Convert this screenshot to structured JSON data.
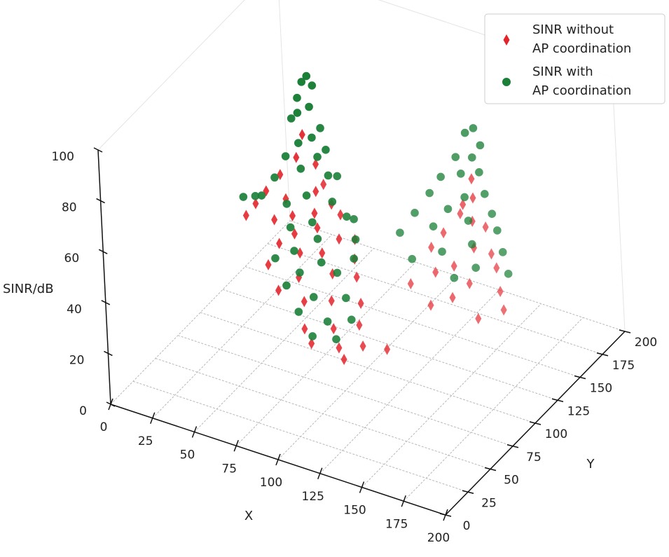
{
  "chart_data": {
    "type": "scatter",
    "projection": "3d",
    "xlabel": "X",
    "ylabel": "Y",
    "zlabel": "SINR/dB",
    "xlim": [
      0,
      200
    ],
    "ylim": [
      0,
      200
    ],
    "zlim": [
      0,
      100
    ],
    "x_ticks": [
      0,
      25,
      50,
      75,
      100,
      125,
      150,
      175,
      200
    ],
    "y_ticks": [
      0,
      25,
      50,
      75,
      100,
      125,
      150,
      175,
      200
    ],
    "z_ticks": [
      0,
      20,
      40,
      60,
      80,
      100
    ],
    "grid": true,
    "legend_position": "top-right",
    "colors": {
      "without": "#e3242b",
      "with": "#1a7f37"
    },
    "series": [
      {
        "name": "SINR without\nAP coordination",
        "marker": "diamond",
        "points": [
          [
            50,
            130,
            70
          ],
          [
            48,
            126,
            62
          ],
          [
            55,
            134,
            58
          ],
          [
            40,
            122,
            55
          ],
          [
            60,
            124,
            52
          ],
          [
            45,
            118,
            48
          ],
          [
            35,
            115,
            50
          ],
          [
            58,
            136,
            50
          ],
          [
            62,
            118,
            46
          ],
          [
            30,
            112,
            45
          ],
          [
            52,
            112,
            45
          ],
          [
            68,
            126,
            48
          ],
          [
            72,
            128,
            44
          ],
          [
            42,
            110,
            42
          ],
          [
            25,
            110,
            40
          ],
          [
            55,
            108,
            40
          ],
          [
            65,
            115,
            42
          ],
          [
            75,
            120,
            38
          ],
          [
            50,
            100,
            38
          ],
          [
            80,
            128,
            36
          ],
          [
            60,
            104,
            35
          ],
          [
            70,
            110,
            35
          ],
          [
            85,
            118,
            33
          ],
          [
            45,
            96,
            30
          ],
          [
            62,
            98,
            28
          ],
          [
            78,
            106,
            30
          ],
          [
            88,
            114,
            28
          ],
          [
            55,
            88,
            25
          ],
          [
            68,
            92,
            22
          ],
          [
            80,
            100,
            22
          ],
          [
            92,
            110,
            20
          ],
          [
            72,
            84,
            15
          ],
          [
            85,
            92,
            15
          ],
          [
            95,
            102,
            15
          ],
          [
            78,
            80,
            12
          ],
          [
            90,
            88,
            10
          ],
          [
            100,
            96,
            10
          ],
          [
            110,
            104,
            8
          ],
          [
            95,
            84,
            8
          ],
          [
            120,
            185,
            48
          ],
          [
            122,
            182,
            42
          ],
          [
            118,
            178,
            40
          ],
          [
            125,
            175,
            36
          ],
          [
            115,
            180,
            35
          ],
          [
            130,
            180,
            33
          ],
          [
            110,
            170,
            30
          ],
          [
            128,
            170,
            28
          ],
          [
            135,
            176,
            25
          ],
          [
            105,
            165,
            25
          ],
          [
            140,
            172,
            22
          ],
          [
            120,
            162,
            22
          ],
          [
            112,
            156,
            20
          ],
          [
            130,
            160,
            18
          ],
          [
            145,
            166,
            16
          ],
          [
            100,
            150,
            15
          ],
          [
            125,
            150,
            15
          ],
          [
            150,
            160,
            12
          ],
          [
            115,
            144,
            12
          ],
          [
            140,
            150,
            10
          ]
        ]
      },
      {
        "name": "SINR with\nAP coordination",
        "marker": "circle",
        "points": [
          [
            52,
            134,
            92
          ],
          [
            50,
            132,
            90
          ],
          [
            54,
            136,
            88
          ],
          [
            48,
            130,
            84
          ],
          [
            55,
            130,
            82
          ],
          [
            50,
            126,
            80
          ],
          [
            45,
            128,
            76
          ],
          [
            60,
            132,
            74
          ],
          [
            58,
            126,
            72
          ],
          [
            52,
            122,
            70
          ],
          [
            65,
            128,
            68
          ],
          [
            62,
            124,
            66
          ],
          [
            45,
            120,
            64
          ],
          [
            55,
            118,
            62
          ],
          [
            68,
            124,
            60
          ],
          [
            70,
            130,
            58
          ],
          [
            40,
            116,
            56
          ],
          [
            60,
            114,
            54
          ],
          [
            72,
            120,
            52
          ],
          [
            50,
            110,
            50
          ],
          [
            35,
            110,
            50
          ],
          [
            30,
            112,
            48
          ],
          [
            25,
            108,
            48
          ],
          [
            65,
            110,
            46
          ],
          [
            78,
            124,
            46
          ],
          [
            55,
            104,
            44
          ],
          [
            80,
            128,
            44
          ],
          [
            70,
            106,
            42
          ],
          [
            85,
            120,
            40
          ],
          [
            60,
            98,
            38
          ],
          [
            75,
            100,
            36
          ],
          [
            88,
            112,
            36
          ],
          [
            50,
            95,
            34
          ],
          [
            65,
            94,
            32
          ],
          [
            82,
            104,
            32
          ],
          [
            60,
            88,
            28
          ],
          [
            75,
            90,
            26
          ],
          [
            90,
            98,
            26
          ],
          [
            70,
            82,
            22
          ],
          [
            85,
            86,
            20
          ],
          [
            95,
            94,
            20
          ],
          [
            80,
            78,
            16
          ],
          [
            92,
            82,
            16
          ],
          [
            122,
            186,
            68
          ],
          [
            118,
            184,
            66
          ],
          [
            128,
            182,
            64
          ],
          [
            125,
            178,
            60
          ],
          [
            115,
            178,
            58
          ],
          [
            130,
            176,
            56
          ],
          [
            120,
            174,
            54
          ],
          [
            110,
            170,
            52
          ],
          [
            135,
            172,
            50
          ],
          [
            125,
            168,
            48
          ],
          [
            105,
            166,
            46
          ],
          [
            140,
            170,
            44
          ],
          [
            118,
            162,
            44
          ],
          [
            130,
            162,
            42
          ],
          [
            100,
            158,
            40
          ],
          [
            145,
            166,
            40
          ],
          [
            112,
            156,
            38
          ],
          [
            135,
            156,
            36
          ],
          [
            150,
            162,
            34
          ],
          [
            95,
            150,
            34
          ],
          [
            120,
            150,
            32
          ],
          [
            140,
            150,
            30
          ],
          [
            155,
            158,
            28
          ],
          [
            105,
            144,
            28
          ],
          [
            130,
            144,
            26
          ]
        ]
      }
    ]
  }
}
